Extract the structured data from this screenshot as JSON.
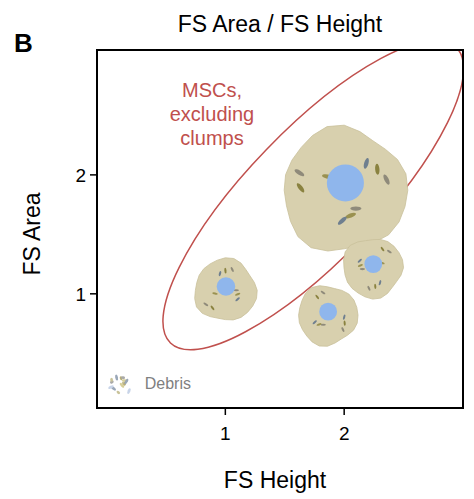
{
  "chart_data": {
    "type": "scatter",
    "panel_label": "B",
    "title": "FS Area / FS Height",
    "x_label": "FS Height",
    "y_label": "FS Area",
    "xlim": [
      -0.08,
      3
    ],
    "ylim": [
      0.04,
      3.05
    ],
    "xticks": [
      1,
      2
    ],
    "yticks": [
      1,
      2
    ],
    "grid": false,
    "series": [
      {
        "color": "#d8d0ae",
        "x": [
          1,
          2,
          1.86,
          2.24
        ],
        "values": [
          1.03,
          1.87,
          0.82,
          1.22
        ],
        "size": [
          0.26,
          0.52,
          0.25,
          0.25
        ]
      }
    ],
    "gate": {
      "label": "MSCs, excluding clumps",
      "color": "#c0504d",
      "center": [
        1.74,
        1.83
      ],
      "radii": [
        1.73,
        0.55
      ]
    },
    "debris": {
      "label": "Debris",
      "x": 0.12,
      "y": 0.25
    }
  }
}
